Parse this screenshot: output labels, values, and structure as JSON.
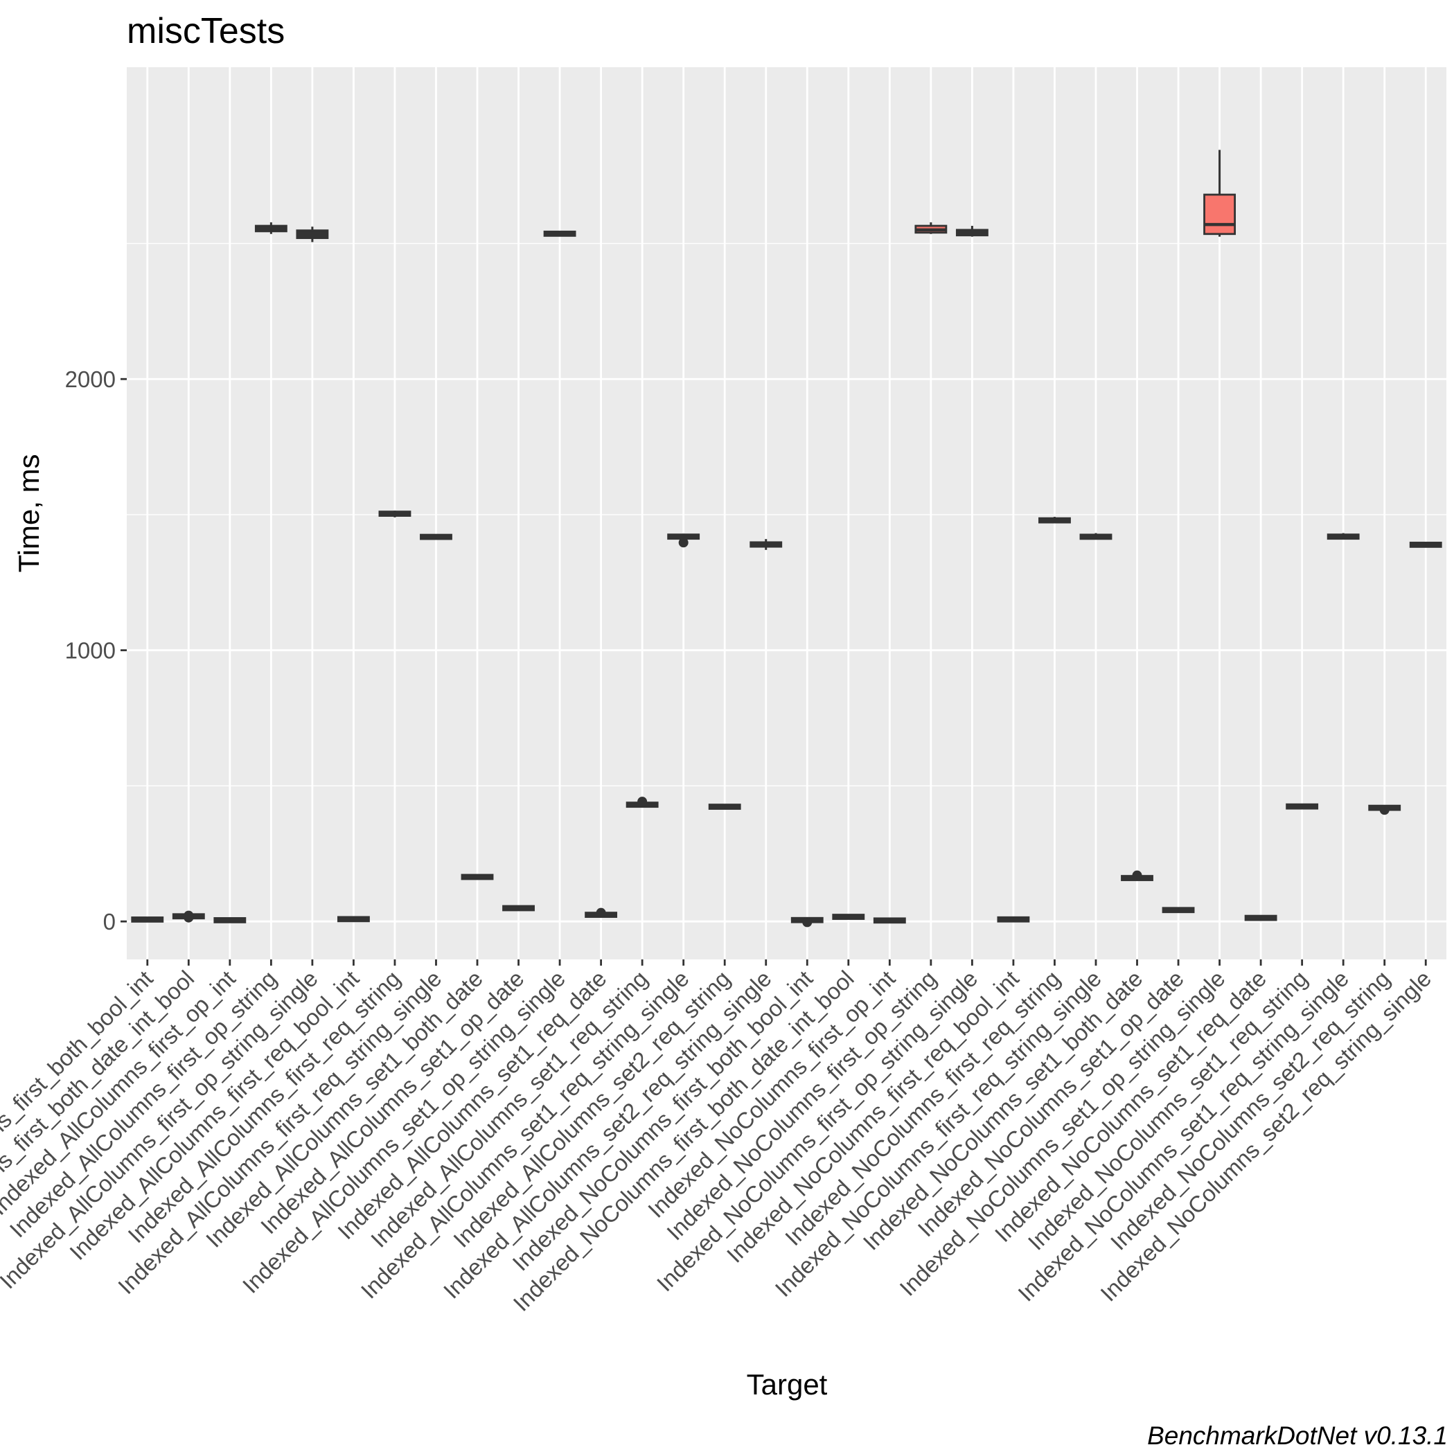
{
  "chart_data": {
    "type": "box",
    "title": "miscTests",
    "xlabel": "Target",
    "ylabel": "Time, ms",
    "caption": "BenchmarkDotNet v0.13.1",
    "ylim": [
      -140,
      3150
    ],
    "yticks": [
      0,
      1000,
      2000
    ],
    "grid": true,
    "colors": {
      "panel_background": "#ebebeb",
      "grid_line": "#ffffff",
      "box_default": "#333333",
      "box_highlight": "#f8766d",
      "box_outline": "#333333"
    },
    "categories": [
      "Indexed_AllColumns_first_both_bool_int",
      "Indexed_AllColumns_first_both_date_int_bool",
      "Indexed_AllColumns_first_op_int",
      "Indexed_AllColumns_first_op_string",
      "Indexed_AllColumns_first_op_string_single",
      "Indexed_AllColumns_first_req_bool_int",
      "Indexed_AllColumns_first_req_string",
      "Indexed_AllColumns_first_req_string_single",
      "Indexed_AllColumns_set1_both_date",
      "Indexed_AllColumns_set1_op_date",
      "Indexed_AllColumns_set1_op_string_single",
      "Indexed_AllColumns_set1_req_date",
      "Indexed_AllColumns_set1_req_string",
      "Indexed_AllColumns_set1_req_string_single",
      "Indexed_AllColumns_set2_req_string",
      "Indexed_AllColumns_set2_req_string_single",
      "Indexed_NoColumns_first_both_bool_int",
      "Indexed_NoColumns_first_both_date_int_bool",
      "Indexed_NoColumns_first_op_int",
      "Indexed_NoColumns_first_op_string",
      "Indexed_NoColumns_first_op_string_single",
      "Indexed_NoColumns_first_req_bool_int",
      "Indexed_NoColumns_first_req_string",
      "Indexed_NoColumns_first_req_string_single",
      "Indexed_NoColumns_set1_both_date",
      "Indexed_NoColumns_set1_op_date",
      "Indexed_NoColumns_set1_op_string_single",
      "Indexed_NoColumns_set1_req_date",
      "Indexed_NoColumns_set1_req_string",
      "Indexed_NoColumns_set1_req_string_single",
      "Indexed_NoColumns_set2_req_string",
      "Indexed_NoColumns_set2_req_string_single"
    ],
    "boxes": [
      {
        "min": 3,
        "q1": 5,
        "median": 7,
        "q3": 9,
        "max": 11,
        "outliers": [],
        "highlight": false
      },
      {
        "min": 14,
        "q1": 17,
        "median": 19,
        "q3": 21,
        "max": 24,
        "outliers": [
          14,
          22
        ],
        "highlight": false
      },
      {
        "min": 1,
        "q1": 3,
        "median": 4,
        "q3": 6,
        "max": 7,
        "outliers": [],
        "highlight": false
      },
      {
        "min": 2535,
        "q1": 2545,
        "median": 2555,
        "q3": 2565,
        "max": 2578,
        "outliers": [],
        "highlight": false
      },
      {
        "min": 2505,
        "q1": 2520,
        "median": 2535,
        "q3": 2548,
        "max": 2562,
        "outliers": [],
        "highlight": false
      },
      {
        "min": 5,
        "q1": 7,
        "median": 8,
        "q3": 10,
        "max": 12,
        "outliers": [],
        "highlight": false
      },
      {
        "min": 1490,
        "q1": 1497,
        "median": 1503,
        "q3": 1510,
        "max": 1515,
        "outliers": [],
        "highlight": false
      },
      {
        "min": 1408,
        "q1": 1413,
        "median": 1418,
        "q3": 1423,
        "max": 1428,
        "outliers": [],
        "highlight": false
      },
      {
        "min": 160,
        "q1": 162,
        "median": 164,
        "q3": 166,
        "max": 168,
        "outliers": [],
        "highlight": false
      },
      {
        "min": 45,
        "q1": 47,
        "median": 49,
        "q3": 51,
        "max": 53,
        "outliers": [],
        "highlight": false
      },
      {
        "min": 2530,
        "q1": 2533,
        "median": 2536,
        "q3": 2539,
        "max": 2542,
        "outliers": [],
        "highlight": false
      },
      {
        "min": 17,
        "q1": 21,
        "median": 24,
        "q3": 28,
        "max": 30,
        "outliers": [
          32
        ],
        "highlight": false
      },
      {
        "min": 422,
        "q1": 427,
        "median": 431,
        "q3": 434,
        "max": 438,
        "outliers": [
          442
        ],
        "highlight": false
      },
      {
        "min": 1410,
        "q1": 1414,
        "median": 1419,
        "q3": 1424,
        "max": 1430,
        "outliers": [
          1397
        ],
        "highlight": false
      },
      {
        "min": 418,
        "q1": 421,
        "median": 423,
        "q3": 425,
        "max": 427,
        "outliers": [],
        "highlight": false
      },
      {
        "min": 1370,
        "q1": 1382,
        "median": 1390,
        "q3": 1398,
        "max": 1410,
        "outliers": [],
        "highlight": false
      },
      {
        "min": 0,
        "q1": 3,
        "median": 5,
        "q3": 7,
        "max": 10,
        "outliers": [
          -3
        ],
        "highlight": false
      },
      {
        "min": 13,
        "q1": 15,
        "median": 17,
        "q3": 19,
        "max": 21,
        "outliers": [],
        "highlight": false
      },
      {
        "min": 0,
        "q1": 2,
        "median": 3,
        "q3": 5,
        "max": 6,
        "outliers": [],
        "highlight": false
      },
      {
        "min": 2535,
        "q1": 2540,
        "median": 2550,
        "q3": 2565,
        "max": 2578,
        "outliers": [],
        "highlight": true
      },
      {
        "min": 2525,
        "q1": 2530,
        "median": 2540,
        "q3": 2550,
        "max": 2565,
        "outliers": [],
        "highlight": false
      },
      {
        "min": 4,
        "q1": 6,
        "median": 7,
        "q3": 9,
        "max": 11,
        "outliers": [],
        "highlight": false
      },
      {
        "min": 1468,
        "q1": 1474,
        "median": 1479,
        "q3": 1484,
        "max": 1492,
        "outliers": [],
        "highlight": false
      },
      {
        "min": 1408,
        "q1": 1413,
        "median": 1418,
        "q3": 1424,
        "max": 1432,
        "outliers": [],
        "highlight": false
      },
      {
        "min": 153,
        "q1": 157,
        "median": 160,
        "q3": 163,
        "max": 166,
        "outliers": [
          170
        ],
        "highlight": false
      },
      {
        "min": 38,
        "q1": 40,
        "median": 42,
        "q3": 44,
        "max": 46,
        "outliers": [],
        "highlight": false
      },
      {
        "min": 2525,
        "q1": 2535,
        "median": 2570,
        "q3": 2680,
        "max": 2845,
        "outliers": [],
        "highlight": true
      },
      {
        "min": 9,
        "q1": 11,
        "median": 13,
        "q3": 15,
        "max": 17,
        "outliers": [],
        "highlight": false
      },
      {
        "min": 418,
        "q1": 421,
        "median": 424,
        "q3": 427,
        "max": 430,
        "outliers": [],
        "highlight": false
      },
      {
        "min": 1410,
        "q1": 1414,
        "median": 1419,
        "q3": 1424,
        "max": 1432,
        "outliers": [],
        "highlight": false
      },
      {
        "min": 410,
        "q1": 415,
        "median": 419,
        "q3": 423,
        "max": 428,
        "outliers": [
          411
        ],
        "highlight": false
      },
      {
        "min": 1380,
        "q1": 1384,
        "median": 1389,
        "q3": 1394,
        "max": 1400,
        "outliers": [],
        "highlight": false
      }
    ]
  }
}
